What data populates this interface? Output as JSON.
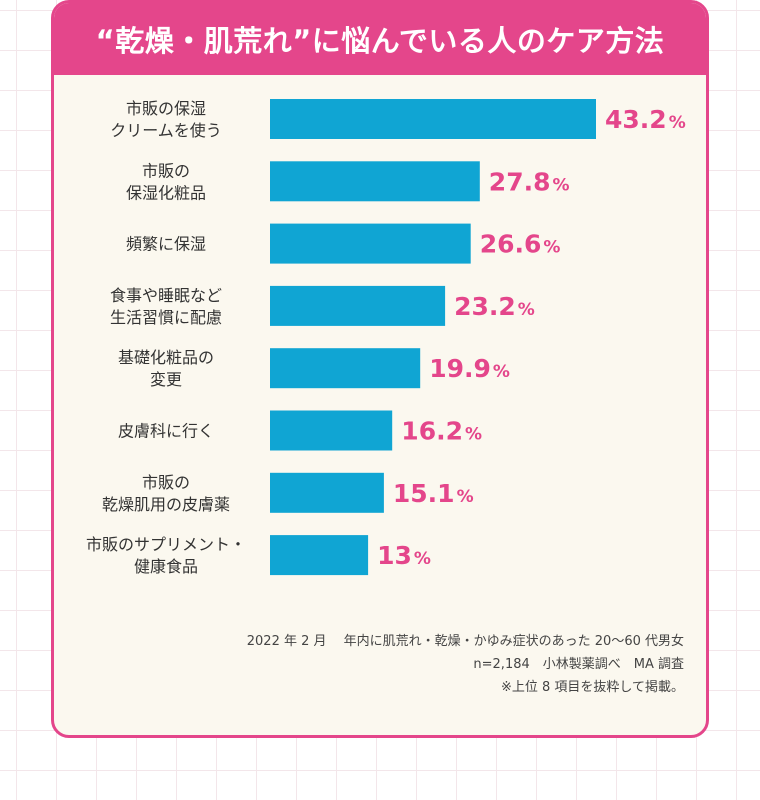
{
  "title": "“乾燥・肌荒れ”に悩んでいる人のケア方法",
  "colors": {
    "accent": "#e4468b",
    "bar": "#10a5d3",
    "panel": "#fbf8ef"
  },
  "chart_data": {
    "type": "bar",
    "orientation": "horizontal",
    "unit": "%",
    "categories": [
      [
        "市販の保湿",
        "クリームを使う"
      ],
      [
        "市販の",
        "保湿化粧品"
      ],
      [
        "頻繁に保湿"
      ],
      [
        "食事や睡眠など",
        "生活習慣に配慮"
      ],
      [
        "基礎化粧品の",
        "変更"
      ],
      [
        "皮膚科に行く"
      ],
      [
        "市販の",
        "乾燥肌用の皮膚薬"
      ],
      [
        "市販のサプリメント・",
        "健康食品"
      ]
    ],
    "values": [
      "43.2",
      "27.8",
      "26.6",
      "23.2",
      "19.9",
      "16.2",
      "15.1",
      "13"
    ],
    "xlim": [
      0,
      43.2
    ],
    "grid": false,
    "legend": "none"
  },
  "notes": [
    "2022 年 2 月　 年内に肌荒れ・乾燥・かゆみ症状のあった 20〜60 代男女",
    "n=2,184　小林製薬調べ　MA 調査",
    "※上位 8 項目を抜粋して掲載。"
  ]
}
